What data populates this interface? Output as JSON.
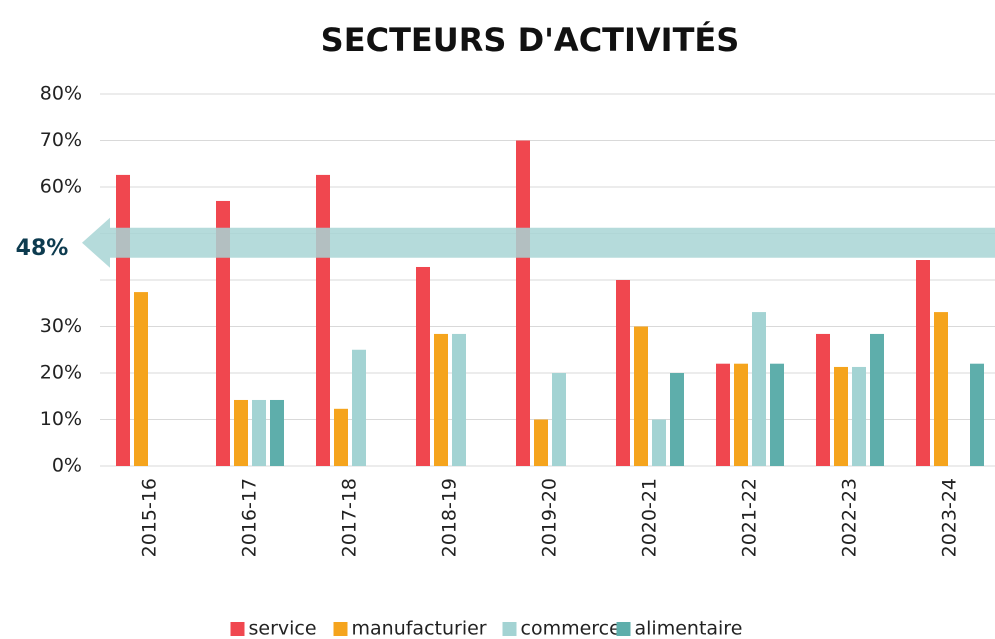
{
  "chart_data": {
    "type": "bar",
    "title": "SECTEURS D'ACTIVITÉS",
    "categories": [
      "2015-16",
      "2016-17",
      "2017-18",
      "2018-19",
      "2019-20",
      "2020-21",
      "2021-22",
      "2022-23",
      "2023-24"
    ],
    "series": [
      {
        "name": "service",
        "color": "#f0474f",
        "values": [
          62.6,
          57,
          62.6,
          42.8,
          70,
          40,
          22,
          28.4,
          44.3
        ]
      },
      {
        "name": "manufacturier",
        "color": "#f5a41d",
        "values": [
          37.4,
          14.2,
          12.3,
          28.4,
          10,
          30,
          22,
          21.3,
          33.1
        ]
      },
      {
        "name": "commerce",
        "color": "#a3d3d3",
        "values": [
          0,
          14.2,
          25,
          28.4,
          20,
          10,
          33.1,
          21.3,
          0
        ]
      },
      {
        "name": "alimentaire",
        "color": "#5eaeab",
        "values": [
          0,
          14.2,
          0,
          0,
          0,
          20,
          22,
          28.4,
          22
        ]
      }
    ],
    "ylim": [
      0,
      80
    ],
    "yticks": [
      {
        "value": 0,
        "label": "0%"
      },
      {
        "value": 10,
        "label": "10%"
      },
      {
        "value": 20,
        "label": "20%"
      },
      {
        "value": 30,
        "label": "30%"
      },
      {
        "value": 40
      },
      {
        "value": 50
      },
      {
        "value": 60,
        "label": "60%"
      },
      {
        "value": 70,
        "label": "70%"
      },
      {
        "value": 80,
        "label": "80%"
      }
    ],
    "grid": true,
    "annotation": {
      "value": 48,
      "label": "48%",
      "color": "#a8d5d5"
    },
    "legend": "bottom"
  }
}
